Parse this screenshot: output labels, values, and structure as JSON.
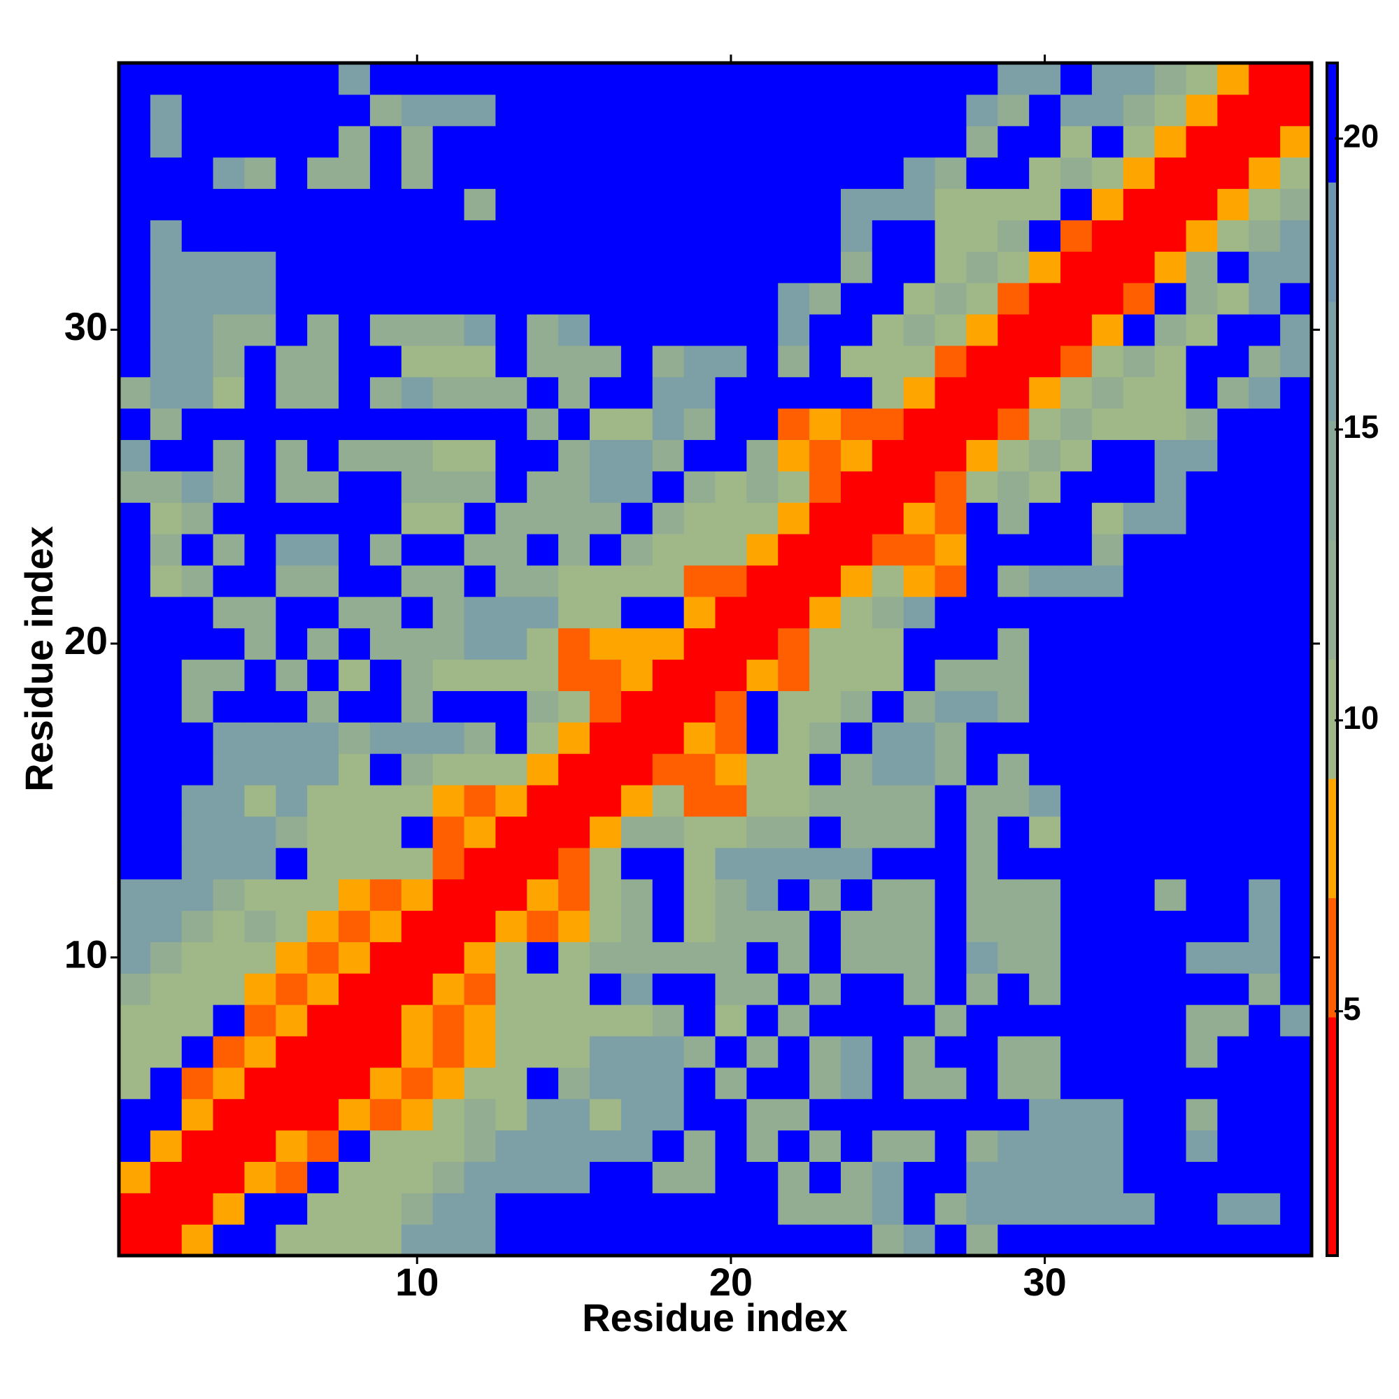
{
  "chart_data": {
    "type": "heatmap",
    "x_label": "Residue index",
    "y_label": "Residue index",
    "x": [
      1,
      2,
      3,
      4,
      5,
      6,
      7,
      8,
      9,
      10,
      11,
      12,
      13,
      14,
      15,
      16,
      17,
      18,
      19,
      20,
      21,
      22,
      23,
      24,
      25,
      26,
      27,
      28,
      29,
      30,
      31,
      32,
      33,
      34,
      35,
      36,
      37,
      38
    ],
    "y": [
      1,
      2,
      3,
      4,
      5,
      6,
      7,
      8,
      9,
      10,
      11,
      12,
      13,
      14,
      15,
      16,
      17,
      18,
      19,
      20,
      21,
      22,
      23,
      24,
      25,
      26,
      27,
      28,
      29,
      30,
      31,
      32,
      33,
      34,
      35,
      36,
      37,
      38
    ],
    "xlim": [
      0.5,
      38.5
    ],
    "ylim": [
      0.5,
      38.5
    ],
    "xticks": [
      10,
      20,
      30
    ],
    "yticks": [
      10,
      20,
      30
    ],
    "zlim": [
      0.8,
      21.3
    ],
    "zticks": [
      5,
      10,
      15,
      20
    ],
    "colors": [
      "#ff0000",
      "#ff0000",
      "#ff5f00",
      "#ffa500",
      "#a0b888",
      "#93ad92",
      "#8aa89a",
      "#7d9fa6",
      "#6f94b0",
      "#0000ff"
    ],
    "values": [
      [
        2,
        2,
        8,
        21,
        21,
        10,
        10,
        10,
        10,
        16,
        16,
        16,
        21,
        21,
        21,
        21,
        21,
        21,
        21,
        21,
        21,
        21,
        21,
        21,
        12,
        16,
        21,
        12,
        21,
        21,
        21,
        21,
        21,
        21,
        21,
        21,
        21,
        21
      ],
      [
        2,
        2,
        2,
        8,
        21,
        21,
        10,
        10,
        10,
        12,
        16,
        16,
        21,
        21,
        21,
        21,
        21,
        21,
        21,
        21,
        21,
        12,
        12,
        12,
        16,
        21,
        12,
        16,
        16,
        16,
        16,
        16,
        16,
        21,
        21,
        16,
        16,
        21
      ],
      [
        8,
        2,
        2,
        2,
        8,
        6,
        21,
        10,
        10,
        10,
        12,
        16,
        16,
        16,
        16,
        21,
        21,
        12,
        12,
        21,
        21,
        12,
        21,
        12,
        16,
        21,
        21,
        16,
        16,
        16,
        16,
        16,
        21,
        21,
        21,
        21,
        21,
        21
      ],
      [
        21,
        8,
        2,
        2,
        2,
        8,
        6,
        21,
        10,
        10,
        10,
        12,
        16,
        16,
        16,
        16,
        16,
        21,
        12,
        21,
        12,
        21,
        12,
        21,
        12,
        12,
        21,
        12,
        16,
        16,
        16,
        16,
        21,
        21,
        16,
        21,
        21,
        21
      ],
      [
        21,
        21,
        8,
        2,
        2,
        2,
        2,
        8,
        6,
        8,
        10,
        12,
        10,
        16,
        16,
        10,
        16,
        16,
        21,
        21,
        12,
        12,
        21,
        21,
        21,
        21,
        21,
        21,
        21,
        16,
        16,
        16,
        21,
        21,
        12,
        21,
        21,
        21
      ],
      [
        10,
        21,
        6,
        8,
        2,
        2,
        2,
        2,
        8,
        6,
        8,
        10,
        10,
        21,
        12,
        16,
        16,
        16,
        21,
        12,
        21,
        21,
        12,
        16,
        21,
        12,
        12,
        21,
        12,
        12,
        21,
        21,
        21,
        21,
        21,
        21,
        21,
        21
      ],
      [
        10,
        10,
        21,
        6,
        8,
        2,
        2,
        2,
        2,
        8,
        6,
        8,
        10,
        10,
        10,
        16,
        16,
        16,
        12,
        21,
        12,
        21,
        12,
        16,
        21,
        12,
        21,
        21,
        12,
        12,
        21,
        21,
        21,
        21,
        12,
        21,
        21,
        21
      ],
      [
        10,
        10,
        10,
        21,
        6,
        8,
        2,
        2,
        2,
        8,
        6,
        8,
        10,
        10,
        10,
        10,
        10,
        12,
        21,
        10,
        21,
        12,
        21,
        21,
        21,
        21,
        12,
        21,
        21,
        21,
        21,
        21,
        21,
        21,
        12,
        12,
        21,
        16
      ],
      [
        12,
        10,
        10,
        10,
        8,
        6,
        8,
        2,
        2,
        2,
        8,
        6,
        10,
        10,
        10,
        21,
        16,
        21,
        21,
        12,
        12,
        21,
        12,
        21,
        21,
        12,
        21,
        12,
        21,
        12,
        21,
        21,
        21,
        21,
        21,
        21,
        12,
        21
      ],
      [
        16,
        12,
        10,
        10,
        10,
        8,
        6,
        8,
        2,
        2,
        2,
        8,
        10,
        21,
        10,
        12,
        12,
        12,
        12,
        12,
        21,
        12,
        21,
        12,
        12,
        12,
        21,
        16,
        12,
        12,
        21,
        21,
        21,
        21,
        16,
        16,
        16,
        21
      ],
      [
        16,
        16,
        12,
        10,
        12,
        10,
        8,
        6,
        8,
        2,
        2,
        2,
        8,
        6,
        8,
        10,
        12,
        21,
        10,
        12,
        12,
        12,
        21,
        12,
        12,
        12,
        21,
        12,
        12,
        12,
        21,
        21,
        21,
        21,
        21,
        21,
        16,
        21
      ],
      [
        16,
        16,
        16,
        12,
        10,
        10,
        10,
        8,
        6,
        8,
        2,
        2,
        2,
        8,
        6,
        10,
        12,
        21,
        10,
        12,
        16,
        21,
        12,
        21,
        12,
        12,
        21,
        12,
        12,
        12,
        21,
        21,
        21,
        12,
        21,
        21,
        16,
        21
      ],
      [
        21,
        21,
        16,
        16,
        16,
        21,
        10,
        10,
        10,
        10,
        6,
        2,
        2,
        2,
        6,
        10,
        21,
        21,
        10,
        16,
        16,
        16,
        16,
        16,
        21,
        21,
        21,
        12,
        21,
        21,
        21,
        21,
        21,
        21,
        21,
        21,
        21,
        21
      ],
      [
        21,
        21,
        16,
        16,
        16,
        12,
        10,
        10,
        10,
        21,
        6,
        8,
        2,
        2,
        2,
        8,
        12,
        12,
        10,
        10,
        12,
        12,
        21,
        12,
        12,
        12,
        21,
        12,
        21,
        10,
        21,
        21,
        21,
        21,
        21,
        21,
        21,
        21
      ],
      [
        21,
        21,
        16,
        16,
        10,
        16,
        10,
        10,
        10,
        10,
        8,
        6,
        8,
        2,
        2,
        2,
        8,
        10,
        6,
        6,
        10,
        10,
        12,
        12,
        12,
        12,
        21,
        12,
        12,
        16,
        21,
        21,
        21,
        21,
        21,
        21,
        21,
        21
      ],
      [
        21,
        21,
        21,
        16,
        16,
        16,
        16,
        10,
        21,
        12,
        10,
        10,
        10,
        8,
        2,
        2,
        2,
        6,
        6,
        8,
        10,
        10,
        21,
        12,
        16,
        16,
        12,
        21,
        12,
        21,
        21,
        21,
        21,
        21,
        21,
        21,
        21,
        21
      ],
      [
        21,
        21,
        21,
        16,
        16,
        16,
        16,
        12,
        16,
        16,
        16,
        12,
        21,
        10,
        8,
        2,
        2,
        2,
        8,
        6,
        21,
        10,
        12,
        21,
        16,
        16,
        12,
        21,
        21,
        21,
        21,
        21,
        21,
        21,
        21,
        21,
        21,
        21
      ],
      [
        21,
        21,
        12,
        21,
        21,
        21,
        12,
        21,
        21,
        12,
        21,
        21,
        21,
        12,
        10,
        6,
        2,
        2,
        2,
        6,
        21,
        10,
        10,
        12,
        21,
        12,
        16,
        16,
        12,
        21,
        21,
        21,
        21,
        21,
        21,
        21,
        21,
        21
      ],
      [
        21,
        21,
        12,
        12,
        21,
        12,
        21,
        10,
        21,
        12,
        10,
        10,
        10,
        10,
        6,
        6,
        8,
        2,
        2,
        2,
        8,
        6,
        10,
        10,
        10,
        21,
        12,
        12,
        12,
        21,
        21,
        21,
        21,
        21,
        21,
        21,
        21,
        21
      ],
      [
        21,
        21,
        21,
        21,
        12,
        21,
        12,
        21,
        12,
        12,
        12,
        16,
        16,
        10,
        6,
        8,
        8,
        8,
        2,
        2,
        2,
        6,
        10,
        10,
        10,
        21,
        21,
        21,
        12,
        21,
        21,
        21,
        21,
        21,
        21,
        21,
        21,
        21
      ],
      [
        21,
        21,
        21,
        12,
        12,
        21,
        21,
        12,
        12,
        21,
        12,
        16,
        16,
        16,
        10,
        10,
        21,
        21,
        8,
        2,
        2,
        2,
        8,
        10,
        12,
        16,
        21,
        21,
        21,
        21,
        21,
        21,
        21,
        21,
        21,
        21,
        21,
        21
      ],
      [
        21,
        10,
        12,
        21,
        21,
        12,
        12,
        21,
        21,
        12,
        12,
        21,
        12,
        12,
        10,
        10,
        10,
        10,
        6,
        6,
        2,
        2,
        2,
        8,
        10,
        8,
        6,
        21,
        12,
        16,
        16,
        16,
        21,
        21,
        21,
        21,
        21,
        21
      ],
      [
        21,
        12,
        21,
        12,
        21,
        16,
        16,
        21,
        12,
        21,
        21,
        12,
        12,
        21,
        12,
        21,
        12,
        10,
        10,
        10,
        8,
        2,
        2,
        2,
        6,
        6,
        8,
        21,
        21,
        21,
        21,
        12,
        21,
        21,
        21,
        21,
        21,
        21
      ],
      [
        21,
        10,
        12,
        21,
        21,
        21,
        21,
        21,
        21,
        10,
        10,
        21,
        12,
        12,
        12,
        12,
        21,
        12,
        10,
        10,
        10,
        8,
        2,
        2,
        2,
        8,
        6,
        21,
        12,
        21,
        21,
        10,
        16,
        16,
        21,
        21,
        21,
        21
      ],
      [
        12,
        12,
        16,
        12,
        21,
        12,
        12,
        21,
        21,
        12,
        12,
        12,
        21,
        12,
        12,
        16,
        16,
        21,
        12,
        10,
        12,
        10,
        6,
        2,
        2,
        2,
        6,
        10,
        12,
        10,
        21,
        21,
        21,
        16,
        21,
        21,
        21,
        21
      ],
      [
        16,
        21,
        21,
        12,
        21,
        12,
        21,
        12,
        12,
        12,
        10,
        10,
        21,
        21,
        12,
        16,
        16,
        12,
        21,
        21,
        12,
        8,
        6,
        8,
        2,
        2,
        2,
        8,
        10,
        12,
        10,
        21,
        21,
        16,
        16,
        21,
        21,
        21
      ],
      [
        21,
        12,
        21,
        21,
        21,
        21,
        21,
        21,
        21,
        21,
        21,
        21,
        21,
        12,
        21,
        10,
        10,
        16,
        12,
        21,
        21,
        6,
        8,
        6,
        6,
        2,
        2,
        2,
        6,
        10,
        12,
        10,
        10,
        10,
        12,
        21,
        21,
        21
      ],
      [
        12,
        16,
        16,
        10,
        21,
        12,
        12,
        21,
        12,
        16,
        12,
        12,
        12,
        21,
        12,
        21,
        21,
        16,
        16,
        21,
        21,
        21,
        21,
        21,
        10,
        8,
        2,
        2,
        2,
        8,
        10,
        12,
        10,
        10,
        21,
        12,
        16,
        21
      ],
      [
        21,
        16,
        16,
        12,
        21,
        12,
        12,
        21,
        21,
        10,
        10,
        10,
        21,
        12,
        12,
        12,
        21,
        12,
        16,
        16,
        21,
        12,
        21,
        10,
        10,
        10,
        6,
        2,
        2,
        2,
        6,
        10,
        12,
        10,
        21,
        21,
        12,
        16
      ],
      [
        21,
        16,
        16,
        12,
        12,
        21,
        12,
        21,
        12,
        12,
        12,
        16,
        21,
        12,
        16,
        21,
        21,
        21,
        21,
        21,
        21,
        16,
        21,
        21,
        10,
        12,
        10,
        8,
        2,
        2,
        2,
        8,
        21,
        12,
        10,
        21,
        21,
        16
      ],
      [
        21,
        16,
        16,
        16,
        16,
        21,
        21,
        21,
        21,
        21,
        21,
        21,
        21,
        21,
        21,
        21,
        21,
        21,
        21,
        21,
        21,
        16,
        12,
        21,
        21,
        10,
        12,
        10,
        6,
        2,
        2,
        2,
        6,
        21,
        12,
        10,
        16,
        21
      ],
      [
        21,
        16,
        16,
        16,
        16,
        21,
        21,
        21,
        21,
        21,
        21,
        21,
        21,
        21,
        21,
        21,
        21,
        21,
        21,
        21,
        21,
        21,
        21,
        12,
        21,
        21,
        10,
        12,
        10,
        8,
        2,
        2,
        2,
        8,
        12,
        21,
        16,
        16
      ],
      [
        21,
        16,
        21,
        21,
        21,
        21,
        21,
        21,
        21,
        21,
        21,
        21,
        21,
        21,
        21,
        21,
        21,
        21,
        21,
        21,
        21,
        21,
        21,
        16,
        21,
        21,
        10,
        10,
        12,
        21,
        6,
        2,
        2,
        2,
        8,
        10,
        12,
        16
      ],
      [
        21,
        21,
        21,
        21,
        21,
        21,
        21,
        21,
        21,
        21,
        21,
        12,
        21,
        21,
        21,
        21,
        21,
        21,
        21,
        21,
        21,
        21,
        21,
        16,
        16,
        16,
        10,
        10,
        10,
        10,
        21,
        8,
        2,
        2,
        2,
        8,
        10,
        12
      ],
      [
        21,
        21,
        21,
        16,
        12,
        21,
        12,
        12,
        21,
        12,
        21,
        21,
        21,
        21,
        21,
        21,
        21,
        21,
        21,
        21,
        21,
        21,
        21,
        21,
        21,
        16,
        12,
        21,
        21,
        10,
        12,
        10,
        8,
        2,
        2,
        2,
        8,
        10
      ],
      [
        21,
        16,
        21,
        21,
        21,
        21,
        21,
        12,
        21,
        12,
        21,
        21,
        21,
        21,
        21,
        21,
        21,
        21,
        21,
        21,
        21,
        21,
        21,
        21,
        21,
        21,
        21,
        12,
        21,
        21,
        10,
        21,
        10,
        8,
        2,
        2,
        2,
        8
      ],
      [
        21,
        16,
        21,
        21,
        21,
        21,
        21,
        21,
        12,
        16,
        16,
        16,
        21,
        21,
        21,
        21,
        21,
        21,
        21,
        21,
        21,
        21,
        21,
        21,
        21,
        21,
        21,
        16,
        12,
        21,
        16,
        16,
        12,
        10,
        8,
        2,
        2,
        2
      ],
      [
        21,
        21,
        21,
        21,
        21,
        21,
        21,
        16,
        21,
        21,
        21,
        21,
        21,
        21,
        21,
        21,
        21,
        21,
        21,
        21,
        21,
        21,
        21,
        21,
        21,
        21,
        21,
        21,
        16,
        16,
        21,
        16,
        16,
        12,
        10,
        8,
        2,
        2
      ]
    ]
  }
}
